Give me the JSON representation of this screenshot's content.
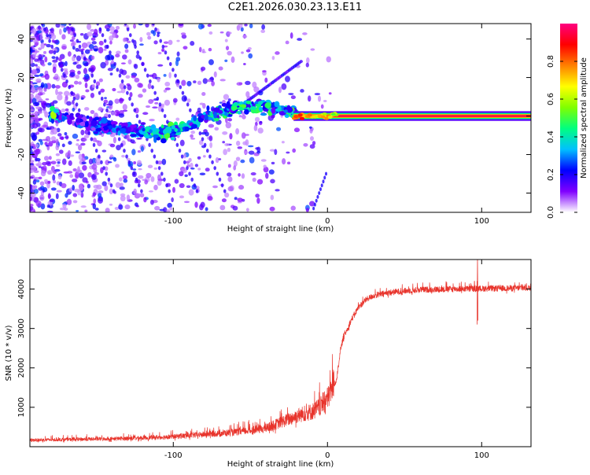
{
  "title": "C2E1.2026.030.23.13.E11",
  "chart_data": [
    {
      "type": "heatmap",
      "title": "C2E1.2026.030.23.13.E11",
      "xlabel": "Height of straight line (km)",
      "ylabel": "Frequency (Hz)",
      "xlim": [
        -193,
        132
      ],
      "ylim": [
        -50,
        48
      ],
      "xticks": [
        -100,
        0,
        100
      ],
      "xtick_labels": [
        "-100",
        "0",
        "100"
      ],
      "yticks": [
        -40,
        -20,
        0,
        20,
        40
      ],
      "ytick_labels": [
        "-40",
        "-20",
        "0",
        "20",
        "40"
      ],
      "ridge": [
        {
          "x": -175,
          "f": 0,
          "amp": 0.35
        },
        {
          "x": -160,
          "f": -3,
          "amp": 0.3
        },
        {
          "x": -140,
          "f": -6,
          "amp": 0.3
        },
        {
          "x": -125,
          "f": -7,
          "amp": 0.35
        },
        {
          "x": -110,
          "f": -9,
          "amp": 0.5
        },
        {
          "x": -100,
          "f": -8,
          "amp": 0.5
        },
        {
          "x": -90,
          "f": -5,
          "amp": 0.4
        },
        {
          "x": -80,
          "f": -1,
          "amp": 0.45
        },
        {
          "x": -70,
          "f": 2,
          "amp": 0.45
        },
        {
          "x": -60,
          "f": 4,
          "amp": 0.5
        },
        {
          "x": -50,
          "f": 5,
          "amp": 0.5
        },
        {
          "x": -40,
          "f": 5,
          "amp": 0.5
        },
        {
          "x": -30,
          "f": 3,
          "amp": 0.5
        },
        {
          "x": -20,
          "f": 1,
          "amp": 0.55
        },
        {
          "x": -10,
          "f": 0,
          "amp": 0.6
        },
        {
          "x": 0,
          "f": 0,
          "amp": 0.8
        },
        {
          "x": 10,
          "f": 0,
          "amp": 0.9
        },
        {
          "x": 20,
          "f": 0,
          "amp": 0.9
        },
        {
          "x": 30,
          "f": 0,
          "amp": 0.95
        },
        {
          "x": 100,
          "f": 0,
          "amp": 0.95
        },
        {
          "x": 132,
          "f": 0,
          "amp": 0.95
        }
      ],
      "colorbar": {
        "label": "Normalized spectral amplitude",
        "range": [
          0.0,
          1.0
        ],
        "ticks": [
          0.0,
          0.2,
          0.4,
          0.6,
          0.8
        ],
        "tick_labels": [
          "0.0",
          "0.2",
          "0.4",
          "0.6",
          "0.8"
        ],
        "colors": [
          "#ffffff",
          "#8000ff",
          "#0000ff",
          "#00c0ff",
          "#00ff80",
          "#80ff00",
          "#ffff00",
          "#ff8000",
          "#ff0000",
          "#ff0080"
        ]
      }
    },
    {
      "type": "line",
      "xlabel": "Height of straight line (km)",
      "ylabel": "SNR (10 * v/v)",
      "xlim": [
        -193,
        132
      ],
      "ylim": [
        0,
        4750
      ],
      "xticks": [
        -100,
        0,
        100
      ],
      "xtick_labels": [
        "-100",
        "0",
        "100"
      ],
      "yticks": [
        1000,
        2000,
        3000,
        4000
      ],
      "ytick_labels": [
        "1000",
        "2000",
        "3000",
        "4000"
      ],
      "color": "#e8342c",
      "series": [
        {
          "name": "SNR",
          "x": [
            -193,
            -160,
            -140,
            -120,
            -100,
            -80,
            -60,
            -40,
            -30,
            -20,
            -15,
            -10,
            -5,
            0,
            3,
            6,
            8,
            10,
            15,
            20,
            25,
            30,
            40,
            50,
            60,
            80,
            100,
            120,
            132
          ],
          "y": [
            150,
            170,
            180,
            200,
            230,
            280,
            330,
            420,
            560,
            700,
            760,
            800,
            900,
            1100,
            1350,
            1700,
            2300,
            2700,
            3150,
            3500,
            3700,
            3800,
            3880,
            3920,
            3950,
            3970,
            3980,
            3990,
            4000
          ]
        }
      ]
    }
  ]
}
